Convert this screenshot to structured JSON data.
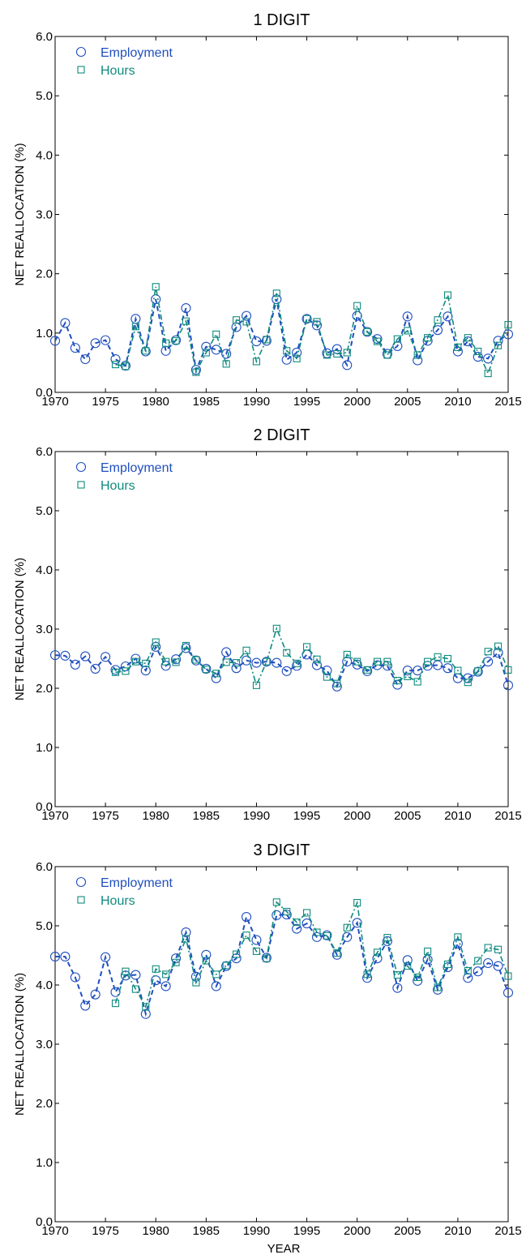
{
  "figure": {
    "xlabel": "YEAR",
    "ylabel": "NET REALLOCATION (%)",
    "colors": {
      "employment": "#1f4fbf",
      "hours": "#0f8b7e"
    },
    "legend_position": "top-left"
  },
  "chart_data": [
    {
      "type": "line",
      "title": "1 DIGIT",
      "xlabel": "",
      "ylabel": "NET REALLOCATION (%)",
      "xlim": [
        1970,
        2015
      ],
      "ylim": [
        0.0,
        6.0
      ],
      "xticks": [
        "1970",
        "1975",
        "1980",
        "1985",
        "1990",
        "1995",
        "2000",
        "2005",
        "2010",
        "2015"
      ],
      "yticks": [
        "0.0",
        "1.0",
        "2.0",
        "3.0",
        "4.0",
        "5.0",
        "6.0"
      ],
      "grid": false,
      "legend": "top-left",
      "x": [
        1970,
        1971,
        1972,
        1973,
        1974,
        1975,
        1976,
        1977,
        1978,
        1979,
        1980,
        1981,
        1982,
        1983,
        1984,
        1985,
        1986,
        1987,
        1988,
        1989,
        1990,
        1991,
        1992,
        1993,
        1994,
        1995,
        1996,
        1997,
        1998,
        1999,
        2000,
        2001,
        2002,
        2003,
        2004,
        2005,
        2006,
        2007,
        2008,
        2009,
        2010,
        2011,
        2012,
        2013,
        2014,
        2015
      ],
      "series": [
        {
          "name": "Employment",
          "marker": "circle",
          "values": [
            0.87,
            1.17,
            0.75,
            0.56,
            0.83,
            0.88,
            0.56,
            0.45,
            1.24,
            0.69,
            1.57,
            0.7,
            0.88,
            1.42,
            0.38,
            0.77,
            0.72,
            0.65,
            1.1,
            1.29,
            0.86,
            0.87,
            1.57,
            0.55,
            0.67,
            1.24,
            1.13,
            0.66,
            0.73,
            0.46,
            1.29,
            1.02,
            0.9,
            0.65,
            0.78,
            1.28,
            0.54,
            0.87,
            1.05,
            1.28,
            0.69,
            0.86,
            0.6,
            0.57,
            0.87,
            0.98
          ]
        },
        {
          "name": "Hours",
          "marker": "square",
          "values": [
            null,
            null,
            null,
            null,
            null,
            null,
            0.47,
            0.44,
            1.11,
            0.7,
            1.78,
            0.83,
            0.87,
            1.2,
            0.34,
            0.67,
            0.98,
            0.48,
            1.22,
            1.19,
            0.52,
            0.89,
            1.67,
            0.7,
            0.57,
            1.24,
            1.19,
            0.63,
            0.65,
            0.67,
            1.46,
            1.02,
            0.86,
            0.63,
            0.9,
            1.04,
            0.63,
            0.92,
            1.22,
            1.64,
            0.76,
            0.92,
            0.69,
            0.32,
            0.79,
            1.14
          ]
        }
      ]
    },
    {
      "type": "line",
      "title": "2 DIGIT",
      "xlabel": "",
      "ylabel": "NET REALLOCATION (%)",
      "xlim": [
        1970,
        2015
      ],
      "ylim": [
        0.0,
        6.0
      ],
      "xticks": [
        "1970",
        "1975",
        "1980",
        "1985",
        "1990",
        "1995",
        "2000",
        "2005",
        "2010",
        "2015"
      ],
      "yticks": [
        "0.0",
        "1.0",
        "2.0",
        "3.0",
        "4.0",
        "5.0",
        "6.0"
      ],
      "grid": false,
      "legend": "top-left",
      "x": [
        1970,
        1971,
        1972,
        1973,
        1974,
        1975,
        1976,
        1977,
        1978,
        1979,
        1980,
        1981,
        1982,
        1983,
        1984,
        1985,
        1986,
        1987,
        1988,
        1989,
        1990,
        1991,
        1992,
        1993,
        1994,
        1995,
        1996,
        1997,
        1998,
        1999,
        2000,
        2001,
        2002,
        2003,
        2004,
        2005,
        2006,
        2007,
        2008,
        2009,
        2010,
        2011,
        2012,
        2013,
        2014,
        2015
      ],
      "series": [
        {
          "name": "Employment",
          "marker": "circle",
          "values": [
            2.56,
            2.55,
            2.4,
            2.54,
            2.33,
            2.53,
            2.31,
            2.37,
            2.5,
            2.3,
            2.7,
            2.38,
            2.49,
            2.68,
            2.47,
            2.33,
            2.17,
            2.61,
            2.34,
            2.47,
            2.43,
            2.45,
            2.43,
            2.29,
            2.38,
            2.57,
            2.39,
            2.3,
            2.03,
            2.45,
            2.4,
            2.29,
            2.39,
            2.38,
            2.06,
            2.3,
            2.3,
            2.38,
            2.39,
            2.34,
            2.17,
            2.17,
            2.28,
            2.45,
            2.6,
            2.05
          ]
        },
        {
          "name": "Hours",
          "marker": "square",
          "values": [
            null,
            null,
            null,
            null,
            null,
            null,
            2.27,
            2.29,
            2.45,
            2.42,
            2.78,
            2.45,
            2.44,
            2.72,
            2.48,
            2.32,
            2.25,
            2.44,
            2.43,
            2.64,
            2.05,
            2.45,
            3.01,
            2.6,
            2.42,
            2.7,
            2.49,
            2.19,
            2.08,
            2.57,
            2.45,
            2.31,
            2.45,
            2.45,
            2.13,
            2.2,
            2.11,
            2.45,
            2.53,
            2.5,
            2.3,
            2.1,
            2.29,
            2.62,
            2.71,
            2.31
          ]
        }
      ]
    },
    {
      "type": "line",
      "title": "3 DIGIT",
      "xlabel": "YEAR",
      "ylabel": "NET REALLOCATION (%)",
      "xlim": [
        1970,
        2015
      ],
      "ylim": [
        0.0,
        6.0
      ],
      "xticks": [
        "1970",
        "1975",
        "1980",
        "1985",
        "1990",
        "1995",
        "2000",
        "2005",
        "2010",
        "2015"
      ],
      "yticks": [
        "0.0",
        "1.0",
        "2.0",
        "3.0",
        "4.0",
        "5.0",
        "6.0"
      ],
      "grid": false,
      "legend": "top-left",
      "x": [
        1970,
        1971,
        1972,
        1973,
        1974,
        1975,
        1976,
        1977,
        1978,
        1979,
        1980,
        1981,
        1982,
        1983,
        1984,
        1985,
        1986,
        1987,
        1988,
        1989,
        1990,
        1991,
        1992,
        1993,
        1994,
        1995,
        1996,
        1997,
        1998,
        1999,
        2000,
        2001,
        2002,
        2003,
        2004,
        2005,
        2006,
        2007,
        2008,
        2009,
        2010,
        2011,
        2012,
        2013,
        2014,
        2015
      ],
      "series": [
        {
          "name": "Employment",
          "marker": "circle",
          "values": [
            4.48,
            4.48,
            4.13,
            3.65,
            3.84,
            4.47,
            3.88,
            4.16,
            4.17,
            3.51,
            4.08,
            3.98,
            4.45,
            4.89,
            4.14,
            4.51,
            3.98,
            4.32,
            4.45,
            5.15,
            4.76,
            4.46,
            5.18,
            5.19,
            4.95,
            5.04,
            4.81,
            4.84,
            4.51,
            4.81,
            5.05,
            4.12,
            4.45,
            4.74,
            3.95,
            4.42,
            4.07,
            4.43,
            3.92,
            4.3,
            4.7,
            4.12,
            4.23,
            4.37,
            4.32,
            3.87
          ]
        },
        {
          "name": "Hours",
          "marker": "square",
          "values": [
            null,
            null,
            null,
            null,
            null,
            null,
            3.69,
            4.23,
            3.93,
            3.63,
            4.27,
            4.18,
            4.38,
            4.78,
            4.04,
            4.41,
            4.18,
            4.33,
            4.52,
            4.84,
            4.57,
            4.45,
            5.4,
            5.24,
            5.06,
            5.22,
            4.89,
            4.83,
            4.54,
            4.97,
            5.39,
            4.18,
            4.55,
            4.8,
            4.17,
            4.32,
            4.13,
            4.57,
            3.96,
            4.35,
            4.81,
            4.24,
            4.41,
            4.63,
            4.6,
            4.15
          ]
        }
      ]
    }
  ]
}
